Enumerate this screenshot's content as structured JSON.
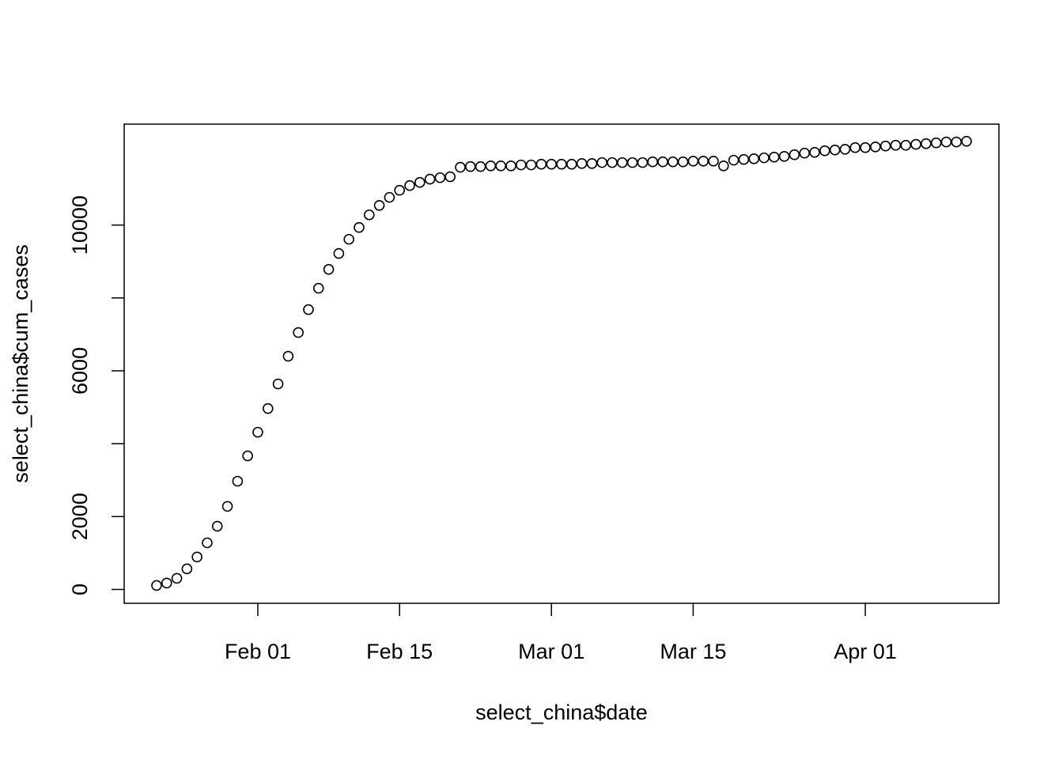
{
  "chart_data": {
    "type": "scatter",
    "xlabel": "select_china$date",
    "ylabel": "select_china$cum_cases",
    "x": [
      "Jan 22",
      "Jan 23",
      "Jan 24",
      "Jan 25",
      "Jan 26",
      "Jan 27",
      "Jan 28",
      "Jan 29",
      "Jan 30",
      "Jan 31",
      "Feb 01",
      "Feb 02",
      "Feb 03",
      "Feb 04",
      "Feb 05",
      "Feb 06",
      "Feb 07",
      "Feb 08",
      "Feb 09",
      "Feb 10",
      "Feb 11",
      "Feb 12",
      "Feb 13",
      "Feb 14",
      "Feb 15",
      "Feb 16",
      "Feb 17",
      "Feb 18",
      "Feb 19",
      "Feb 20",
      "Feb 21",
      "Feb 22",
      "Feb 23",
      "Feb 24",
      "Feb 25",
      "Feb 26",
      "Feb 27",
      "Feb 28",
      "Feb 29",
      "Mar 01",
      "Mar 02",
      "Mar 03",
      "Mar 04",
      "Mar 05",
      "Mar 06",
      "Mar 07",
      "Mar 08",
      "Mar 09",
      "Mar 10",
      "Mar 11",
      "Mar 12",
      "Mar 13",
      "Mar 14",
      "Mar 15",
      "Mar 16",
      "Mar 17",
      "Mar 18",
      "Mar 19",
      "Mar 20",
      "Mar 21",
      "Mar 22",
      "Mar 23",
      "Mar 24",
      "Mar 25",
      "Mar 26",
      "Mar 27",
      "Mar 28",
      "Mar 29",
      "Mar 30",
      "Mar 31",
      "Apr 01",
      "Apr 02",
      "Apr 03",
      "Apr 04",
      "Apr 05",
      "Apr 06",
      "Apr 07",
      "Apr 08",
      "Apr 09",
      "Apr 10",
      "Apr 11"
    ],
    "values": [
      110,
      175,
      305,
      565,
      890,
      1280,
      1735,
      2280,
      2970,
      3665,
      4315,
      4965,
      5640,
      6400,
      7050,
      7680,
      8265,
      8785,
      9220,
      9610,
      9935,
      10280,
      10540,
      10760,
      10955,
      11085,
      11170,
      11260,
      11300,
      11325,
      11585,
      11605,
      11605,
      11625,
      11625,
      11625,
      11650,
      11650,
      11670,
      11670,
      11670,
      11670,
      11690,
      11690,
      11715,
      11715,
      11715,
      11715,
      11715,
      11735,
      11735,
      11735,
      11735,
      11755,
      11755,
      11755,
      11625,
      11780,
      11800,
      11820,
      11845,
      11865,
      11885,
      11930,
      11975,
      11995,
      12040,
      12060,
      12080,
      12125,
      12125,
      12145,
      12170,
      12190,
      12190,
      12215,
      12235,
      12255,
      12280,
      12280,
      12300
    ],
    "color": "#000000",
    "xticks": [
      "Feb 01",
      "Feb 15",
      "Mar 01",
      "Mar 15",
      "Apr 01"
    ],
    "ylim": [
      -380,
      12770
    ],
    "yticks": [
      0,
      2000,
      {
        "value": 4000,
        "label": null
      },
      6000,
      {
        "value": 8000,
        "label": null
      },
      10000
    ]
  }
}
